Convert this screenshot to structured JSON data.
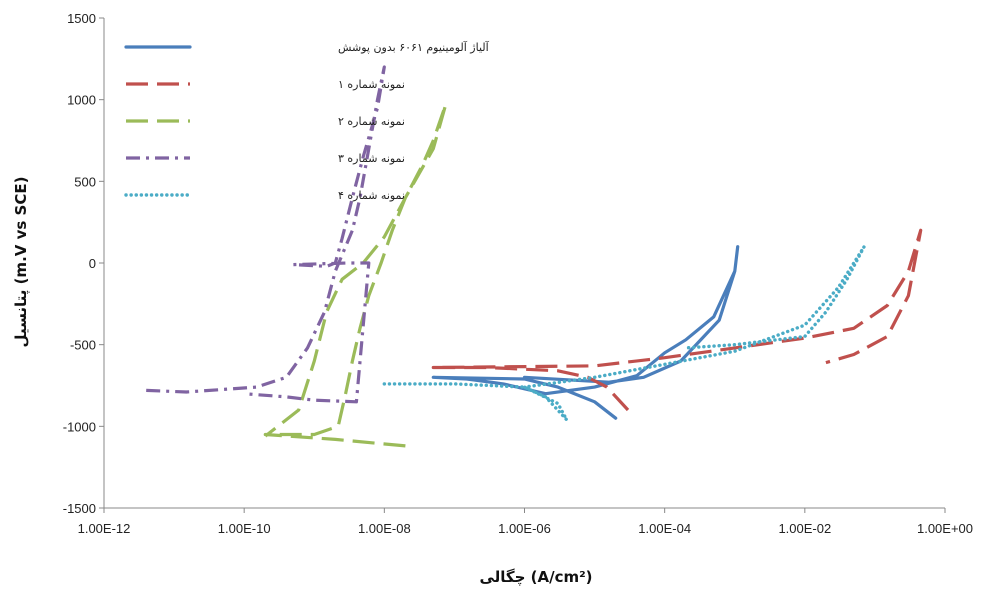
{
  "chart_data": {
    "type": "line",
    "xlabel": "چگالی (A/cm²)",
    "ylabel": "پتانسیل (m.V vs SCE)",
    "x_scale": "log",
    "xlim": [
      1e-12,
      1
    ],
    "ylim": [
      -1500,
      1500
    ],
    "x_tick_labels": [
      "1.00E-12",
      "1.00E-10",
      "1.00E-08",
      "1.00E-06",
      "1.00E-04",
      "1.00E-02",
      "1.00E+00"
    ],
    "y_ticks": [
      -1500,
      -1000,
      -500,
      0,
      500,
      1000,
      1500
    ],
    "grid": false,
    "legend_position": "top-left",
    "series": [
      {
        "name": "آلیاژ آلومینیوم ۶۰۶۱ بدون پوشش",
        "color": "#4a7ebb",
        "dash": "solid",
        "points": [
          [
            1e-06,
            -700
          ],
          [
            1.6e-05,
            -730
          ],
          [
            5e-05,
            -700
          ],
          [
            0.00017,
            -600
          ],
          [
            0.0006,
            -350
          ],
          [
            0.001,
            -50
          ],
          [
            0.0011,
            100
          ],
          [
            0.001,
            -50
          ],
          [
            0.0005,
            -330
          ],
          [
            0.0002,
            -470
          ],
          [
            0.0001,
            -550
          ],
          [
            4e-05,
            -690
          ],
          [
            1e-05,
            -760
          ],
          [
            2e-06,
            -800
          ],
          [
            5e-07,
            -740
          ],
          [
            1.5e-07,
            -710
          ],
          [
            5e-08,
            -700
          ],
          [
            1e-06,
            -710
          ],
          [
            3e-06,
            -760
          ],
          [
            1e-05,
            -850
          ],
          [
            2e-05,
            -950
          ]
        ]
      },
      {
        "name": "نمونه شماره ۱",
        "color": "#c0504d",
        "dash": "long-dash",
        "points": [
          [
            3e-05,
            -900
          ],
          [
            1.5e-05,
            -760
          ],
          [
            8e-06,
            -700
          ],
          [
            3e-06,
            -660
          ],
          [
            3e-07,
            -640
          ],
          [
            5e-08,
            -640
          ],
          [
            1e-05,
            -630
          ],
          [
            0.0001,
            -580
          ],
          [
            0.001,
            -520
          ],
          [
            0.01,
            -460
          ],
          [
            0.05,
            -400
          ],
          [
            0.15,
            -260
          ],
          [
            0.3,
            -50
          ],
          [
            0.45,
            200
          ],
          [
            0.3,
            -200
          ],
          [
            0.15,
            -450
          ],
          [
            0.05,
            -560
          ],
          [
            0.02,
            -610
          ]
        ]
      },
      {
        "name": "نمونه شماره ۲",
        "color": "#9bbb59",
        "dash": "long-dash",
        "points": [
          [
            2e-08,
            -1120
          ],
          [
            2e-09,
            -1080
          ],
          [
            2e-10,
            -1050
          ],
          [
            1e-09,
            -1050
          ],
          [
            2.2e-09,
            -1000
          ],
          [
            2.8e-09,
            -800
          ],
          [
            3.5e-09,
            -600
          ],
          [
            4.5e-09,
            -400
          ],
          [
            6e-09,
            -200
          ],
          [
            9e-09,
            0
          ],
          [
            1.3e-08,
            200
          ],
          [
            2e-08,
            400
          ],
          [
            3.5e-08,
            600
          ],
          [
            5e-08,
            750
          ],
          [
            7.5e-08,
            970
          ],
          [
            5e-08,
            700
          ],
          [
            2e-08,
            400
          ],
          [
            1e-08,
            160
          ],
          [
            5e-09,
            0
          ],
          [
            2.5e-09,
            -100
          ],
          [
            1.5e-09,
            -300
          ],
          [
            1e-09,
            -600
          ],
          [
            6e-10,
            -900
          ],
          [
            2e-10,
            -1060
          ]
        ]
      },
      {
        "name": "نمونه شماره ۳",
        "color": "#8064a2",
        "dash": "dash-dot",
        "points": [
          [
            4e-12,
            -780
          ],
          [
            1.5e-11,
            -790
          ],
          [
            1.5e-10,
            -760
          ],
          [
            4e-10,
            -700
          ],
          [
            8e-10,
            -520
          ],
          [
            1.4e-09,
            -300
          ],
          [
            2e-09,
            -50
          ],
          [
            3.5e-09,
            200
          ],
          [
            4.5e-09,
            400
          ],
          [
            6e-09,
            700
          ],
          [
            8e-09,
            1000
          ],
          [
            1e-08,
            1200
          ],
          [
            8e-09,
            950
          ],
          [
            5e-09,
            650
          ],
          [
            3.5e-09,
            400
          ],
          [
            2.5e-09,
            150
          ],
          [
            2e-09,
            0
          ],
          [
            1.5e-09,
            -20
          ],
          [
            5e-10,
            -10
          ],
          [
            3e-09,
            0
          ],
          [
            6e-09,
            0
          ],
          [
            4e-09,
            -850
          ],
          [
            1e-09,
            -840
          ],
          [
            4e-10,
            -820
          ],
          [
            1e-10,
            -800
          ]
        ]
      },
      {
        "name": "نمونه شماره ۴",
        "color": "#4bacc6",
        "dash": "dotted",
        "points": [
          [
            1e-08,
            -740
          ],
          [
            1e-07,
            -740
          ],
          [
            1e-06,
            -760
          ],
          [
            2e-06,
            -820
          ],
          [
            4e-06,
            -960
          ],
          [
            3e-06,
            -860
          ],
          [
            1e-06,
            -760
          ],
          [
            1e-05,
            -700
          ],
          [
            0.0001,
            -620
          ],
          [
            0.001,
            -540
          ],
          [
            0.01,
            -380
          ],
          [
            0.03,
            -150
          ],
          [
            0.07,
            100
          ],
          [
            0.04,
            -100
          ],
          [
            0.02,
            -300
          ],
          [
            0.01,
            -450
          ],
          [
            0.001,
            -500
          ],
          [
            0.0002,
            -520
          ]
        ]
      }
    ]
  }
}
